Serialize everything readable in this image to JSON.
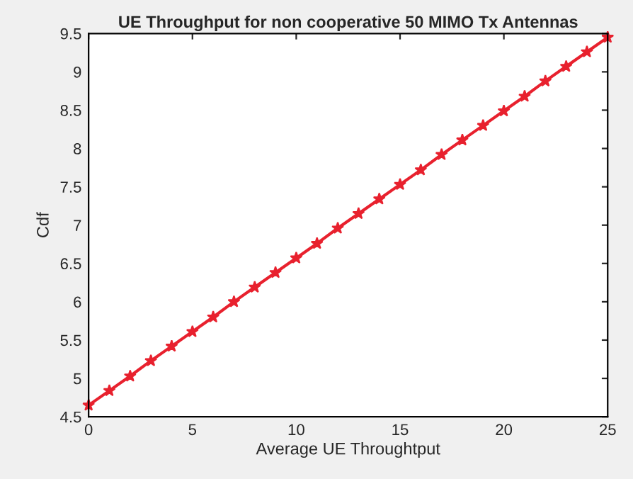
{
  "chart_data": {
    "type": "line",
    "title": "UE Throughput for non cooperative 50 MIMO Tx Antennas",
    "xlabel": "Average UE Throughtput",
    "ylabel": "Cdf",
    "x": [
      0,
      1,
      2,
      3,
      4,
      5,
      6,
      7,
      8,
      9,
      10,
      11,
      12,
      13,
      14,
      15,
      16,
      17,
      18,
      19,
      20,
      21,
      22,
      23,
      24,
      25
    ],
    "series": [
      {
        "color": "#e8212e",
        "values": [
          4.65,
          4.84,
          5.03,
          5.23,
          5.42,
          5.61,
          5.8,
          6.0,
          6.19,
          6.38,
          6.57,
          6.76,
          6.96,
          7.15,
          7.34,
          7.53,
          7.72,
          7.92,
          8.11,
          8.3,
          8.49,
          8.68,
          8.88,
          9.07,
          9.26,
          9.45
        ]
      }
    ],
    "xlim": [
      0,
      25
    ],
    "ylim": [
      4.5,
      9.5
    ],
    "xticks": [
      0,
      5,
      10,
      15,
      20,
      25
    ],
    "yticks": [
      4.5,
      5,
      5.5,
      6,
      6.5,
      7,
      7.5,
      8,
      8.5,
      9,
      9.5
    ],
    "marker": "star",
    "line_style": "solid",
    "grid": false
  }
}
